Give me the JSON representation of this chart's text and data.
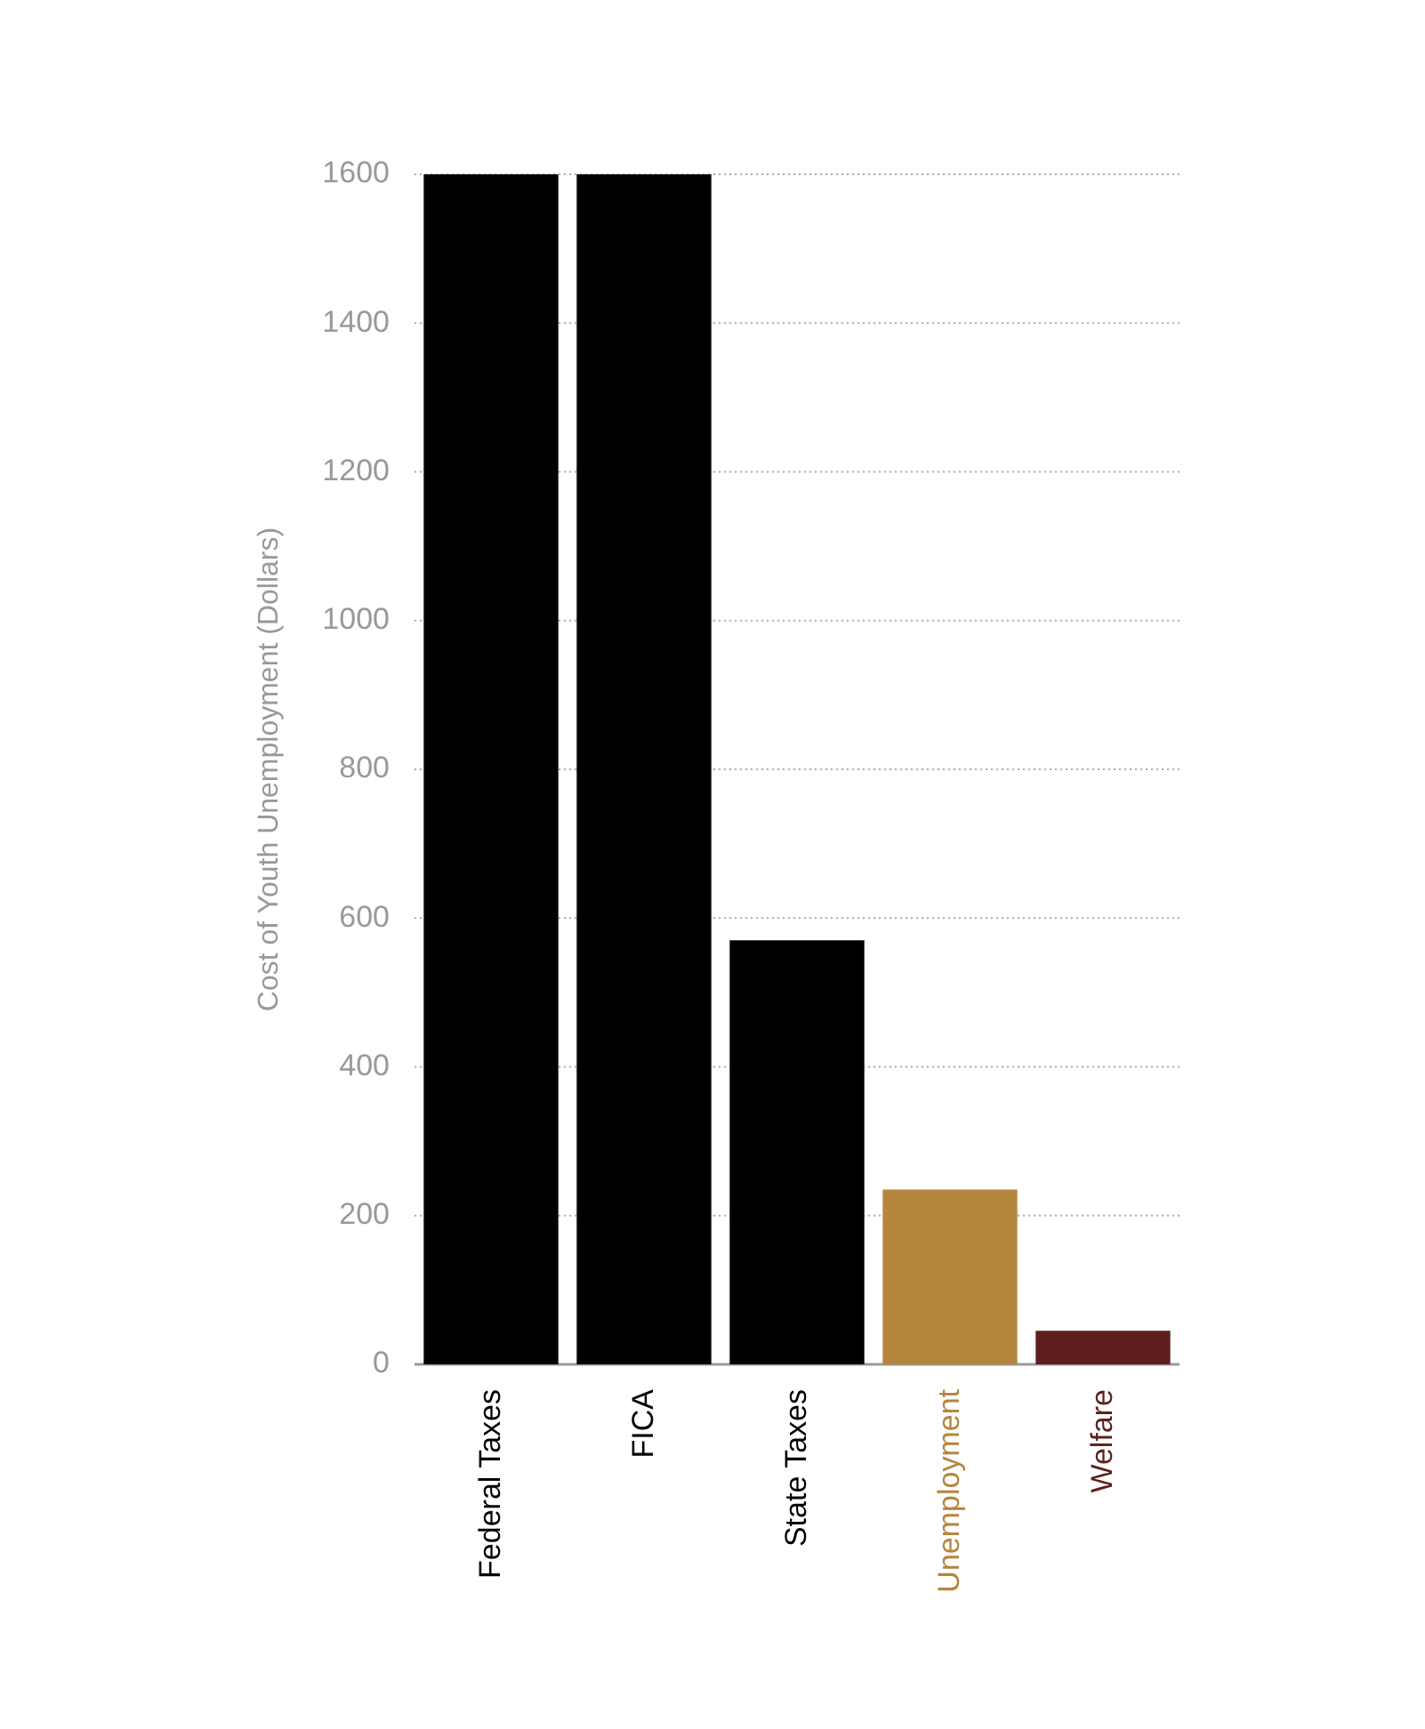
{
  "chart_data": {
    "type": "bar",
    "ylabel": "Cost of Youth Unemployment (Dollars)",
    "categories": [
      "Federal Taxes",
      "FICA",
      "State Taxes",
      "Unemployment",
      "Welfare"
    ],
    "values": [
      1600,
      1600,
      570,
      235,
      45
    ],
    "colors": [
      "#000000",
      "#000000",
      "#000000",
      "#b5853e",
      "#5e1f1f"
    ],
    "ylim": [
      0,
      1600
    ],
    "yticks": [
      0,
      200,
      400,
      600,
      800,
      1000,
      1200,
      1400,
      1600
    ],
    "grid": "y",
    "legend": false
  }
}
